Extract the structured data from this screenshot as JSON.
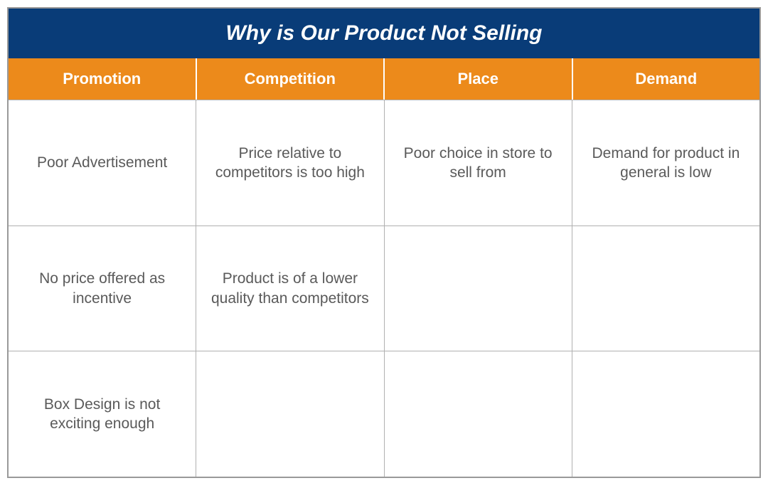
{
  "diagram": {
    "type": "table",
    "title": "Why is Our Product Not Selling",
    "title_bg": "#093c78",
    "title_color": "#ffffff",
    "title_fontsize": 30,
    "header_bg": "#ec8a1b",
    "header_color": "#ffffff",
    "header_fontsize": 22,
    "cell_bg": "#ffffff",
    "cell_text_color": "#5a5a5a",
    "cell_fontsize": 21,
    "outer_border_color": "#999999",
    "grid_color": "#b0b0b0",
    "columns": [
      "Promotion",
      "Competition",
      "Place",
      "Demand"
    ],
    "rows": [
      [
        "Poor Advertisement",
        "Price relative to competitors is too high",
        "Poor choice in store to sell from",
        "Demand for product in general is low"
      ],
      [
        "No price offered as incentive",
        "Product is of a lower quality than competitors",
        "",
        ""
      ],
      [
        "Box Design is not exciting enough",
        "",
        "",
        ""
      ]
    ]
  }
}
